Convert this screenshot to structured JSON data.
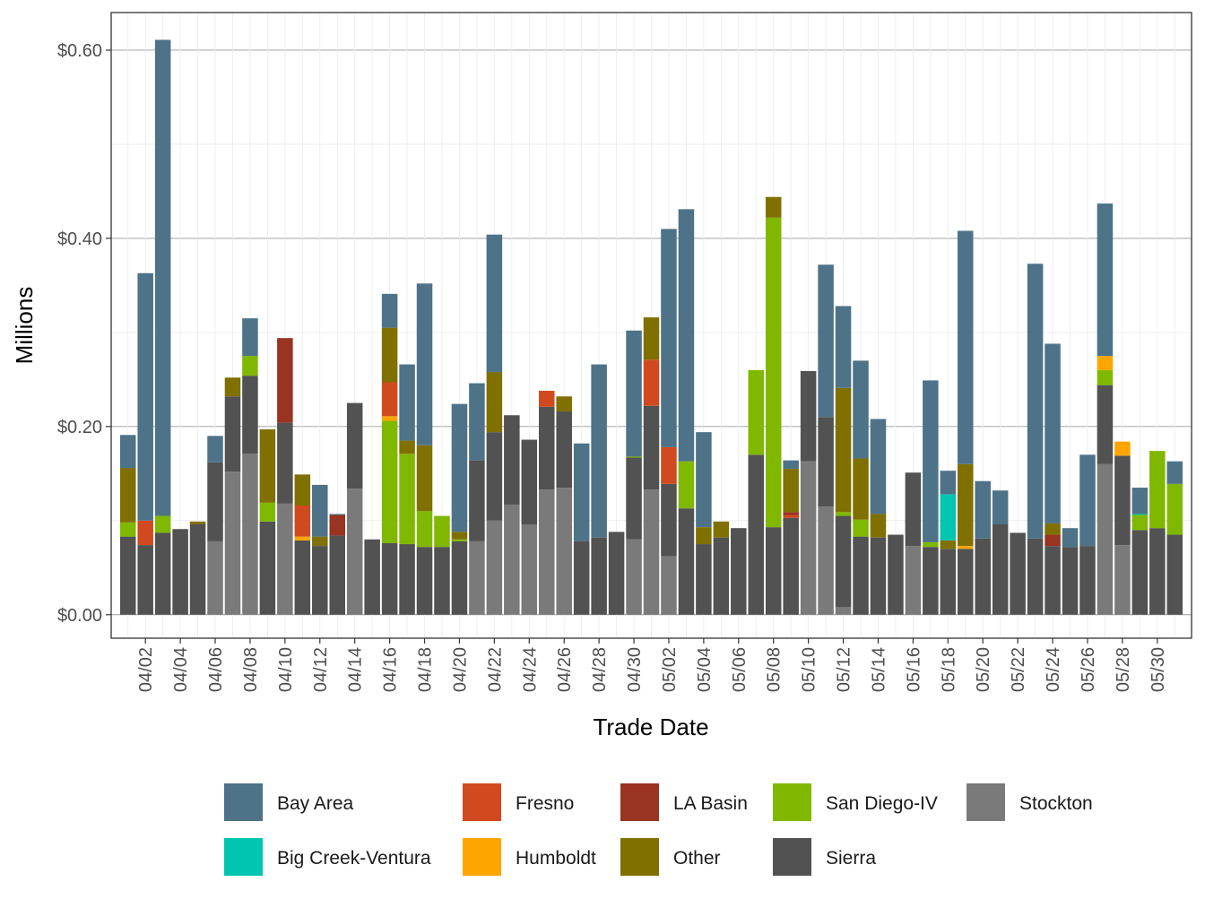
{
  "chart_data": {
    "type": "bar",
    "stacked": true,
    "title": "",
    "xlabel": "Trade Date",
    "ylabel": "Millions",
    "ylim": [
      -0.025,
      0.64
    ],
    "yticks": [
      0.0,
      0.2,
      0.4,
      0.6
    ],
    "ytick_labels": [
      "$0.00",
      "$0.20",
      "$0.40",
      "$0.60"
    ],
    "xtick_labels": [
      "04/02",
      "04/04",
      "04/06",
      "04/08",
      "04/10",
      "04/12",
      "04/14",
      "04/16",
      "04/18",
      "04/20",
      "04/22",
      "04/24",
      "04/26",
      "04/28",
      "04/30",
      "05/02",
      "05/04",
      "05/06",
      "05/08",
      "05/10",
      "05/12",
      "05/14",
      "05/16",
      "05/18",
      "05/20",
      "05/22",
      "05/24",
      "05/26",
      "05/28",
      "05/30"
    ],
    "categories": [
      "04/01",
      "04/02",
      "04/03",
      "04/04",
      "04/05",
      "04/06",
      "04/07",
      "04/08",
      "04/09",
      "04/10",
      "04/11",
      "04/12",
      "04/13",
      "04/14",
      "04/15",
      "04/16",
      "04/17",
      "04/18",
      "04/19",
      "04/20",
      "04/21",
      "04/22",
      "04/23",
      "04/24",
      "04/25",
      "04/26",
      "04/27",
      "04/28",
      "04/29",
      "04/30",
      "05/01",
      "05/02",
      "05/03",
      "05/04",
      "05/05",
      "05/06",
      "05/07",
      "05/08",
      "05/09",
      "05/10",
      "05/11",
      "05/12",
      "05/13",
      "05/14",
      "05/15",
      "05/16",
      "05/17",
      "05/18",
      "05/19",
      "05/20",
      "05/21",
      "05/22",
      "05/23",
      "05/24",
      "05/25",
      "05/26",
      "05/27",
      "05/28",
      "05/29",
      "05/30",
      "05/31"
    ],
    "legend": {
      "position": "bottom",
      "ncol": 5
    },
    "series": [
      {
        "name": "Stockton",
        "color": "#7a7a7a",
        "values": [
          0,
          0,
          0,
          0,
          0,
          0.078,
          0.152,
          0.171,
          0,
          0.118,
          0,
          0,
          0,
          0.134,
          0,
          0,
          0,
          0,
          0,
          0,
          0.078,
          0.1,
          0.117,
          0.096,
          0.133,
          0.135,
          0,
          0,
          0,
          0.08,
          0.133,
          0.062,
          0,
          0,
          0,
          0,
          0,
          0,
          0,
          0.163,
          0.115,
          0.008,
          0,
          0,
          0,
          0.073,
          0,
          0,
          0,
          0,
          0,
          0,
          0,
          0,
          0,
          0,
          0.16,
          0.074,
          0,
          0,
          0
        ]
      },
      {
        "name": "Sierra",
        "color": "#525252",
        "values": [
          0.083,
          0.074,
          0.087,
          0.091,
          0.096,
          0.084,
          0.08,
          0.083,
          0.099,
          0.086,
          0.079,
          0.073,
          0.084,
          0.091,
          0.08,
          0.076,
          0.075,
          0.072,
          0.072,
          0.078,
          0.086,
          0.094,
          0.095,
          0.09,
          0.088,
          0.081,
          0.078,
          0.082,
          0.088,
          0.087,
          0.089,
          0.077,
          0.113,
          0.075,
          0.082,
          0.092,
          0.17,
          0.093,
          0.103,
          0.096,
          0.095,
          0.097,
          0.083,
          0.082,
          0.085,
          0.078,
          0.072,
          0.07,
          0.07,
          0.081,
          0.096,
          0.087,
          0.081,
          0.073,
          0.072,
          0.073,
          0.084,
          0.095,
          0.09,
          0.092,
          0.085
        ]
      },
      {
        "name": "San Diego-IV",
        "color": "#80b800",
        "values": [
          0.015,
          0,
          0.018,
          0,
          0,
          0,
          0,
          0.021,
          0.02,
          0,
          0,
          0,
          0,
          0,
          0,
          0.13,
          0.096,
          0.038,
          0.033,
          0.002,
          0,
          0,
          0,
          0,
          0,
          0,
          0,
          0,
          0,
          0.001,
          0,
          0,
          0.05,
          0,
          0,
          0,
          0.09,
          0.329,
          0,
          0,
          0,
          0.004,
          0.018,
          0,
          0,
          0,
          0.005,
          0,
          0,
          0,
          0,
          0,
          0,
          0,
          0,
          0,
          0.016,
          0,
          0.016,
          0.082,
          0.054
        ]
      },
      {
        "name": "Humboldt",
        "color": "#ffa500",
        "values": [
          0,
          0,
          0,
          0,
          0,
          0,
          0,
          0,
          0,
          0,
          0.004,
          0,
          0,
          0,
          0,
          0.005,
          0,
          0,
          0,
          0,
          0,
          0,
          0,
          0,
          0,
          0,
          0,
          0,
          0,
          0,
          0,
          0,
          0,
          0,
          0,
          0,
          0,
          0,
          0,
          0,
          0,
          0,
          0,
          0,
          0,
          0,
          0,
          0,
          0.003,
          0,
          0,
          0,
          0,
          0,
          0,
          0,
          0.015,
          0.015,
          0,
          0,
          0
        ]
      },
      {
        "name": "Fresno",
        "color": "#d14a1f",
        "values": [
          0,
          0.026,
          0,
          0,
          0,
          0,
          0,
          0,
          0,
          0,
          0.033,
          0,
          0,
          0,
          0,
          0.036,
          0,
          0,
          0,
          0,
          0,
          0,
          0,
          0,
          0.017,
          0,
          0,
          0,
          0,
          0,
          0.049,
          0.039,
          0,
          0,
          0,
          0,
          0,
          0,
          0.003,
          0,
          0,
          0,
          0,
          0,
          0,
          0,
          0,
          0,
          0,
          0,
          0,
          0,
          0,
          0,
          0,
          0,
          0,
          0,
          0,
          0,
          0
        ]
      },
      {
        "name": "LA Basin",
        "color": "#993322",
        "values": [
          0,
          0,
          0,
          0,
          0,
          0,
          0,
          0,
          0,
          0.09,
          0,
          0,
          0.022,
          0,
          0,
          0,
          0,
          0,
          0,
          0,
          0,
          0,
          0,
          0,
          0,
          0,
          0,
          0,
          0,
          0,
          0,
          0,
          0,
          0,
          0,
          0,
          0,
          0,
          0.003,
          0,
          0,
          0,
          0,
          0,
          0,
          0,
          0,
          0,
          0,
          0,
          0,
          0,
          0,
          0.012,
          0,
          0,
          0,
          0,
          0,
          0,
          0
        ]
      },
      {
        "name": "Other",
        "color": "#807000",
        "values": [
          0.058,
          0,
          0,
          0,
          0.003,
          0,
          0.02,
          0,
          0.078,
          0,
          0.033,
          0.01,
          0,
          0,
          0,
          0.058,
          0.014,
          0.07,
          0,
          0.008,
          0,
          0.064,
          0,
          0,
          0,
          0.016,
          0,
          0,
          0,
          0,
          0.045,
          0,
          0,
          0.018,
          0.017,
          0,
          0,
          0.022,
          0.046,
          0,
          0,
          0.132,
          0.065,
          0.025,
          0,
          0,
          0,
          0.009,
          0.087,
          0,
          0,
          0,
          0,
          0.012,
          0,
          0,
          0,
          0,
          0,
          0,
          0
        ]
      },
      {
        "name": "Big Creek-Ventura",
        "color": "#00c5b0",
        "values": [
          0,
          0,
          0,
          0,
          0,
          0,
          0,
          0,
          0,
          0,
          0,
          0,
          0,
          0,
          0,
          0,
          0,
          0,
          0,
          0,
          0,
          0,
          0,
          0,
          0,
          0,
          0,
          0,
          0,
          0,
          0,
          0,
          0,
          0,
          0,
          0,
          0,
          0,
          0,
          0,
          0,
          0,
          0,
          0,
          0,
          0,
          0,
          0.049,
          0,
          0,
          0,
          0,
          0,
          0,
          0,
          0,
          0,
          0,
          0.001,
          0,
          0
        ]
      },
      {
        "name": "Bay Area",
        "color": "#4e7388",
        "values": [
          0.035,
          0.263,
          0.506,
          0,
          0,
          0.028,
          0,
          0.04,
          0,
          0,
          0,
          0.055,
          0.001,
          0,
          0,
          0.036,
          0.081,
          0.172,
          0,
          0.136,
          0.082,
          0.146,
          0,
          0,
          0,
          0,
          0.104,
          0.184,
          0,
          0.134,
          0,
          0.232,
          0.268,
          0.101,
          0,
          0,
          0,
          0,
          0.009,
          0,
          0.162,
          0.087,
          0.104,
          0.101,
          0,
          0,
          0.172,
          0.025,
          0.248,
          0.061,
          0.036,
          0,
          0.292,
          0.191,
          0.02,
          0.097,
          0.162,
          0,
          0.028,
          0,
          0.024
        ]
      }
    ]
  }
}
